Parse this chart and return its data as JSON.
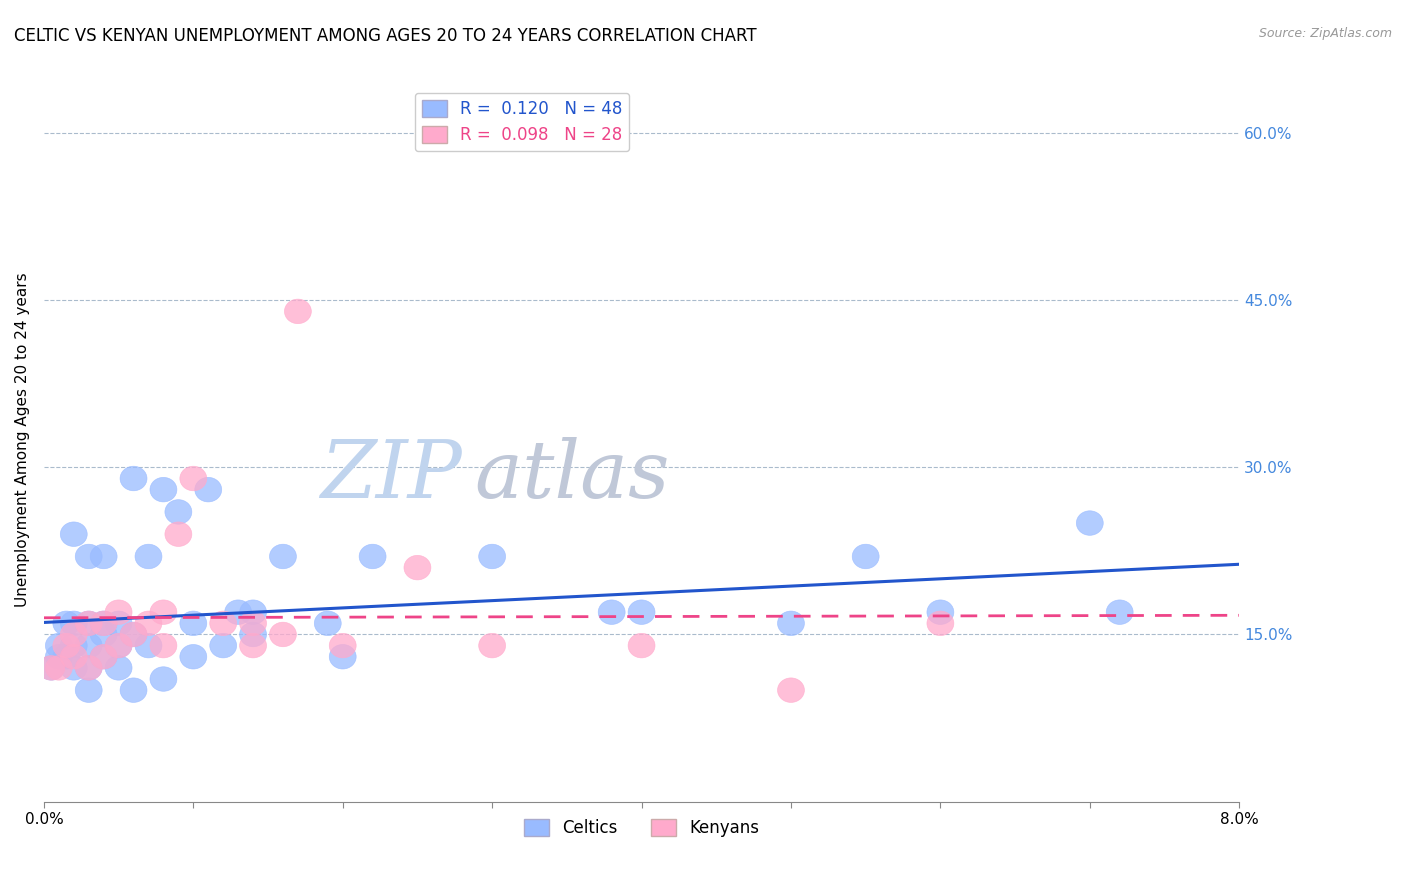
{
  "title": "CELTIC VS KENYAN UNEMPLOYMENT AMONG AGES 20 TO 24 YEARS CORRELATION CHART",
  "source": "Source: ZipAtlas.com",
  "ylabel": "Unemployment Among Ages 20 to 24 years",
  "xlim": [
    0.0,
    0.08
  ],
  "ylim": [
    0.0,
    0.65
  ],
  "yticks_right": [
    0.15,
    0.3,
    0.45,
    0.6
  ],
  "ytick_labels_right": [
    "15.0%",
    "30.0%",
    "45.0%",
    "60.0%"
  ],
  "celtic_color": "#99bbff",
  "kenyan_color": "#ffaacc",
  "trend_celtic_color": "#2255cc",
  "trend_kenyan_color": "#ee4488",
  "watermark_zip_color": "#c8d8f0",
  "watermark_atlas_color": "#c8c8d8",
  "legend_line1": "R =  0.120   N = 48",
  "legend_line2": "R =  0.098   N = 28",
  "celtics_x": [
    0.0005,
    0.001,
    0.001,
    0.0015,
    0.0015,
    0.002,
    0.002,
    0.002,
    0.002,
    0.003,
    0.003,
    0.003,
    0.003,
    0.003,
    0.004,
    0.004,
    0.004,
    0.004,
    0.005,
    0.005,
    0.005,
    0.006,
    0.006,
    0.006,
    0.007,
    0.007,
    0.008,
    0.008,
    0.009,
    0.01,
    0.01,
    0.011,
    0.012,
    0.013,
    0.014,
    0.014,
    0.016,
    0.019,
    0.02,
    0.022,
    0.03,
    0.038,
    0.04,
    0.05,
    0.055,
    0.06,
    0.07,
    0.072
  ],
  "celtics_y": [
    0.12,
    0.13,
    0.14,
    0.13,
    0.16,
    0.12,
    0.14,
    0.16,
    0.24,
    0.1,
    0.12,
    0.14,
    0.16,
    0.22,
    0.13,
    0.15,
    0.16,
    0.22,
    0.12,
    0.14,
    0.16,
    0.1,
    0.15,
    0.29,
    0.14,
    0.22,
    0.11,
    0.28,
    0.26,
    0.13,
    0.16,
    0.28,
    0.14,
    0.17,
    0.15,
    0.17,
    0.22,
    0.16,
    0.13,
    0.22,
    0.22,
    0.17,
    0.17,
    0.16,
    0.22,
    0.17,
    0.25,
    0.17
  ],
  "kenyans_x": [
    0.0005,
    0.001,
    0.0015,
    0.002,
    0.002,
    0.003,
    0.003,
    0.004,
    0.004,
    0.005,
    0.005,
    0.006,
    0.007,
    0.008,
    0.008,
    0.009,
    0.01,
    0.012,
    0.014,
    0.014,
    0.016,
    0.017,
    0.02,
    0.025,
    0.03,
    0.04,
    0.05,
    0.06
  ],
  "kenyans_y": [
    0.12,
    0.12,
    0.14,
    0.13,
    0.15,
    0.12,
    0.16,
    0.13,
    0.16,
    0.14,
    0.17,
    0.15,
    0.16,
    0.14,
    0.17,
    0.24,
    0.29,
    0.16,
    0.14,
    0.16,
    0.15,
    0.44,
    0.14,
    0.21,
    0.14,
    0.14,
    0.1,
    0.16
  ],
  "title_fontsize": 12,
  "axis_label_fontsize": 11,
  "tick_fontsize": 11,
  "legend_fontsize": 12
}
